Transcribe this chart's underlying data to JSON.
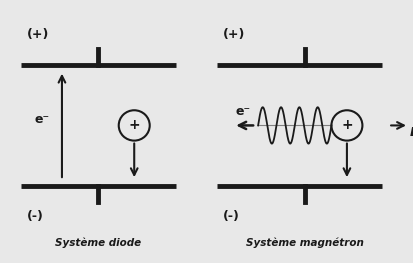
{
  "background_color": "#e8e8e8",
  "plate_color": "#1a1a1a",
  "plate_lw": 3.5,
  "arrow_color": "#1a1a1a",
  "coil_color": "#1a1a1a",
  "text_color": "#1a1a1a",
  "label_diode": "Système diode",
  "label_magnetron": "Système magnétron",
  "plus_label": "(+)",
  "minus_label": "(-)",
  "electron_label": "e⁻"
}
